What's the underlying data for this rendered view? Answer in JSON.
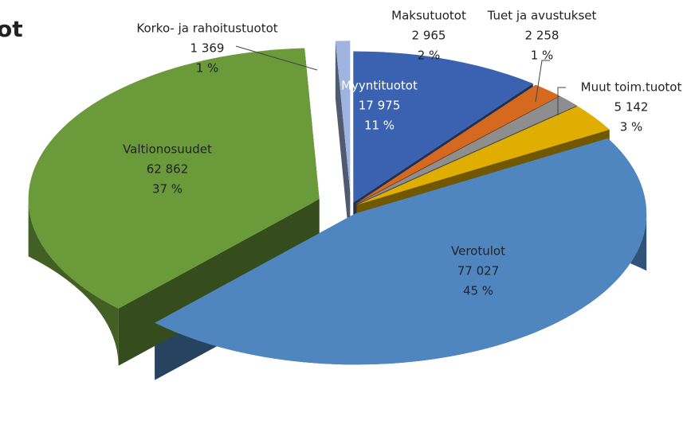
{
  "chart_data": {
    "type": "pie3d",
    "title": "ot",
    "categories": [
      "Myyntituotot",
      "Maksutuotot",
      "Tuet ja avustukset",
      "Muut toim.tuotot",
      "Verotulot",
      "Valtionosuudet",
      "Korko- ja rahoitustuotot"
    ],
    "values": [
      17975,
      2965,
      2258,
      5142,
      77027,
      62862,
      1369
    ],
    "value_labels": [
      "17 975",
      "2 965",
      "2 258",
      "5 142",
      "77 027",
      "62 862",
      "1 369"
    ],
    "percentages": [
      11,
      2,
      1,
      3,
      45,
      37,
      1
    ],
    "percentage_labels": [
      "11 %",
      "2 %",
      "1 %",
      "3 %",
      "45 %",
      "37 %",
      "1 %"
    ],
    "colors": [
      "#3a62b0",
      "#d5691f",
      "#8e8e8e",
      "#dfae00",
      "#4f86c0",
      "#6a9a3a",
      "#9fb4e0"
    ]
  }
}
